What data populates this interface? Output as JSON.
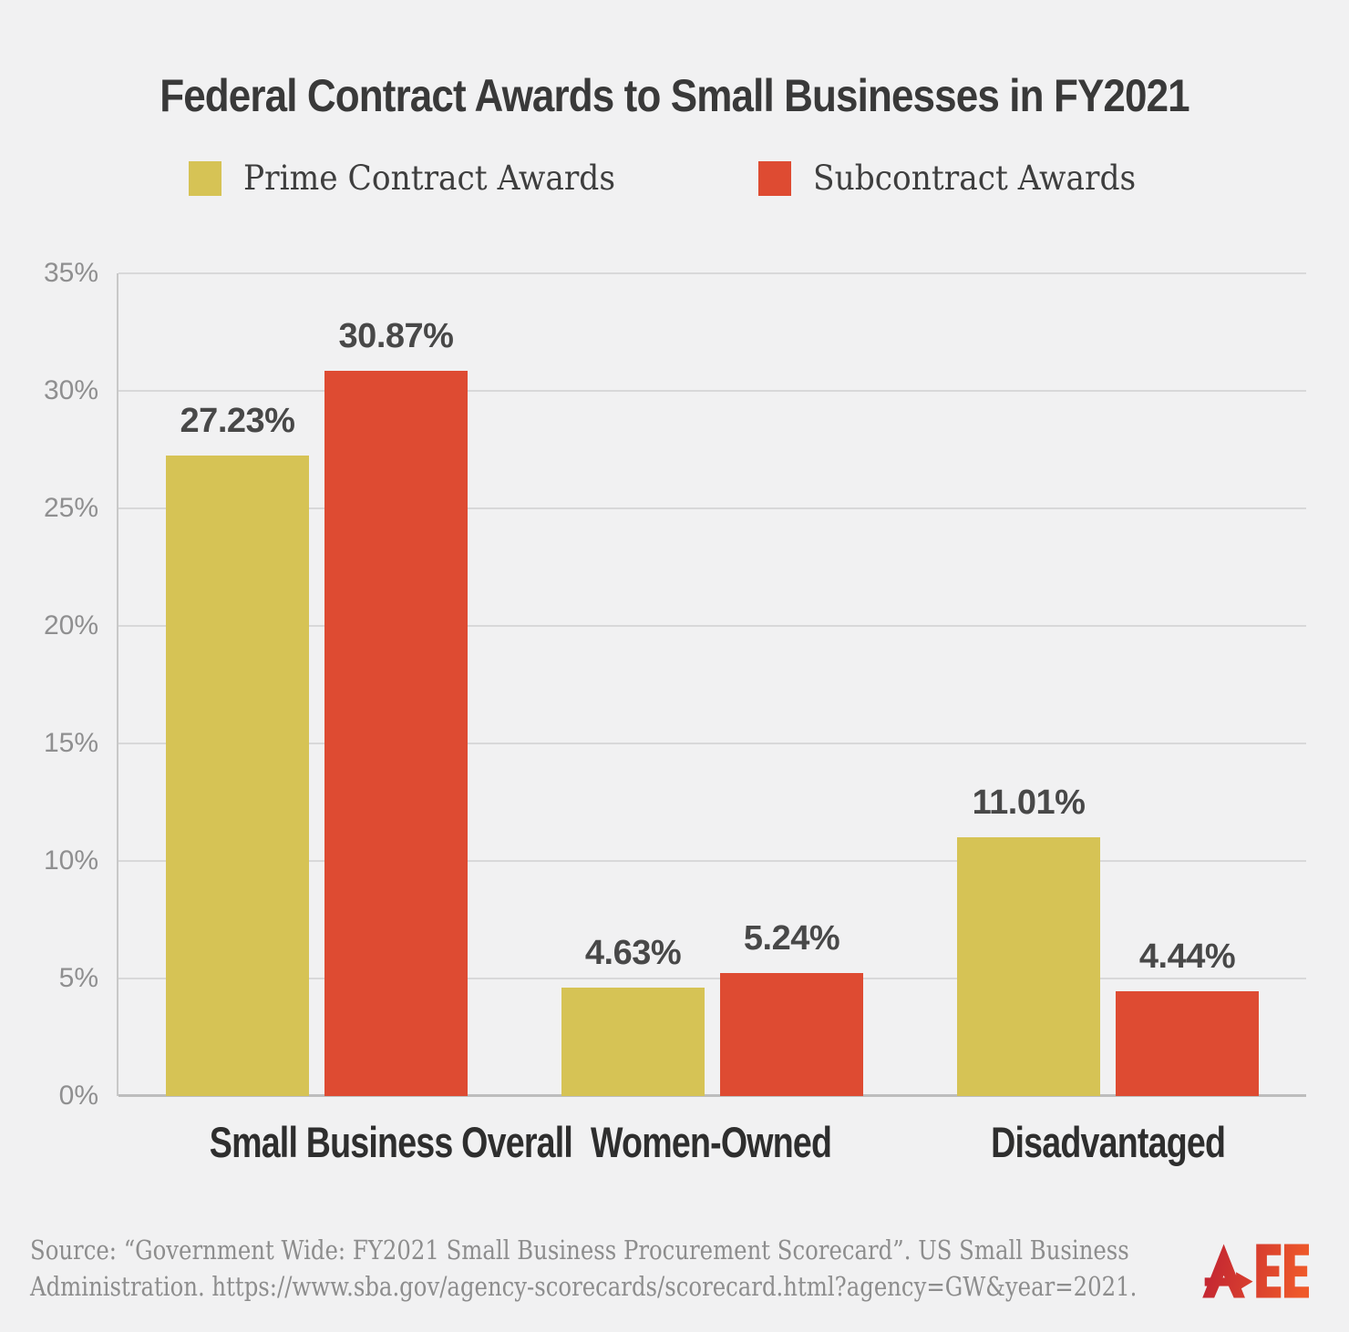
{
  "page": {
    "background": "#f1f1f2"
  },
  "chart_data": {
    "type": "bar",
    "title": "Federal Contract Awards to Small Businesses in FY2021",
    "categories": [
      "Small Business Overall",
      "Women-Owned",
      "Disadvantaged"
    ],
    "series": [
      {
        "name": "Prime Contract Awards",
        "color": "#d6c355",
        "values": [
          27.23,
          4.63,
          11.01
        ]
      },
      {
        "name": "Subcontract Awards",
        "color": "#de4b32",
        "values": [
          30.87,
          5.24,
          4.44
        ]
      }
    ],
    "value_labels": [
      [
        "27.23%",
        "4.63%",
        "11.01%"
      ],
      [
        "30.87%",
        "5.24%",
        "4.44%"
      ]
    ],
    "yticks": [
      0,
      5,
      10,
      15,
      20,
      25,
      30,
      35
    ],
    "ytick_suffix": "%",
    "ylim": [
      0,
      35
    ],
    "grid": true,
    "legend_position": "top-center",
    "xlabel": "",
    "ylabel": ""
  },
  "source": {
    "line1": "Source: “Government Wide: FY2021 Small Business Procurement Scorecard”. US Small Business",
    "line2": "Administration. https://www.sba.gov/agency-scorecards/scorecard.html?agency=GW&year=2021."
  },
  "logo": {
    "text": "AEE",
    "color_start": "#bf2133",
    "color_end": "#ef5a2a"
  }
}
